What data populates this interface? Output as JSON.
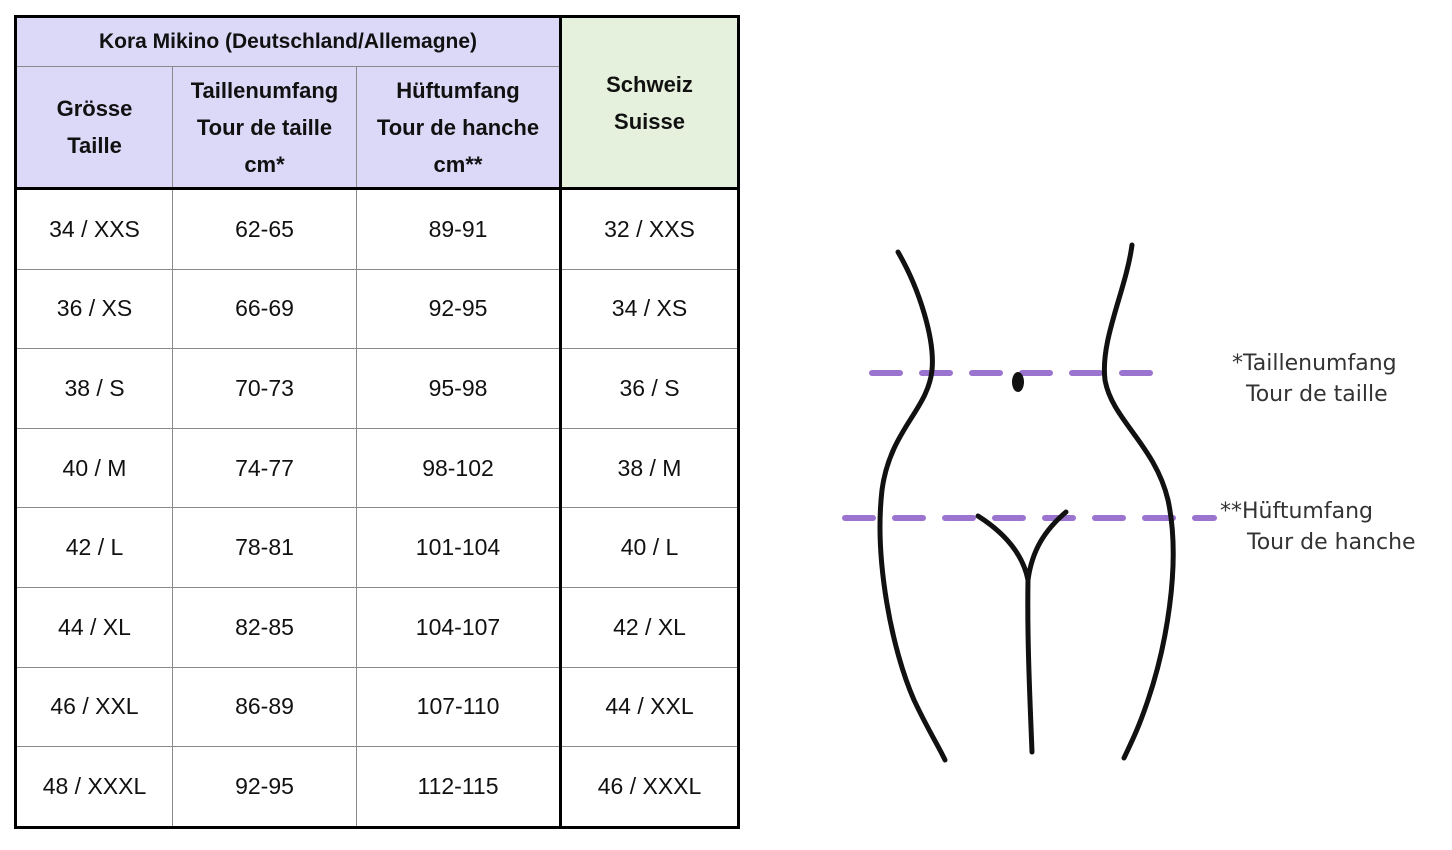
{
  "table": {
    "brand_header": "Kora Mikino (Deutschland/Allemagne)",
    "size_header": [
      "Grösse",
      "Taille"
    ],
    "waist_header": [
      "Taillenumfang",
      "Tour de taille",
      "cm*"
    ],
    "hip_header": [
      "Hüftumfang",
      "Tour de hanche",
      "cm**"
    ],
    "swiss_header": [
      "Schweiz",
      "Suisse"
    ],
    "rows": [
      {
        "de": "34 / XXS",
        "waist": "62-65",
        "hip": "89-91",
        "ch": "32 / XXS"
      },
      {
        "de": "36 / XS",
        "waist": "66-69",
        "hip": "92-95",
        "ch": "34 / XS"
      },
      {
        "de": "38 / S",
        "waist": "70-73",
        "hip": "95-98",
        "ch": "36 / S"
      },
      {
        "de": "40 / M",
        "waist": "74-77",
        "hip": "98-102",
        "ch": "38 / M"
      },
      {
        "de": "42 / L",
        "waist": "78-81",
        "hip": "101-104",
        "ch": "40 / L"
      },
      {
        "de": "44 / XL",
        "waist": "82-85",
        "hip": "104-107",
        "ch": "42 / XL"
      },
      {
        "de": "46 / XXL",
        "waist": "86-89",
        "hip": "107-110",
        "ch": "44 / XXL"
      },
      {
        "de": "48 / XXXL",
        "waist": "92-95",
        "hip": "112-115",
        "ch": "46 / XXXL"
      }
    ]
  },
  "diagram": {
    "waist_label": [
      "*Taillenumfang",
      "Tour de taille"
    ],
    "hip_label": [
      "**Hüftumfang",
      "Tour de hanche"
    ],
    "line_color": "#8a5cc7"
  }
}
